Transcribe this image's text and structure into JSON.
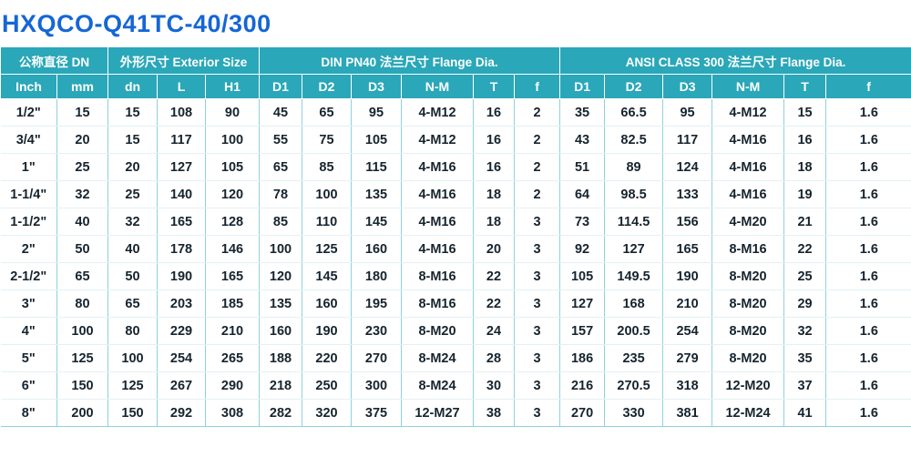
{
  "page": {
    "title": "HXQCO-Q41TC-40/300"
  },
  "colors": {
    "header_bg": "#2aa7b8",
    "title_color": "#1566d6",
    "grid_teal": "#8ed2dd",
    "row_line": "#e2f1f4",
    "text_dark": "#16242f"
  },
  "chart_data": {
    "type": "table",
    "title": "HXQCO-Q41TC-40/300",
    "column_groups": [
      {
        "label": "公称直径 DN",
        "span": 2
      },
      {
        "label": "外形尺寸 Exterior Size",
        "span": 3
      },
      {
        "label": "DIN PN40 法兰尺寸 Flange Dia.",
        "span": 6
      },
      {
        "label": "ANSI CLASS 300 法兰尺寸 Flange Dia.",
        "span": 6
      }
    ],
    "columns": [
      "Inch",
      "mm",
      "dn",
      "L",
      "H1",
      "D1",
      "D2",
      "D3",
      "N-M",
      "T",
      "f",
      "D1",
      "D2",
      "D3",
      "N-M",
      "T",
      "f"
    ],
    "rows": [
      [
        "1/2\"",
        15,
        15,
        108,
        90,
        45,
        65,
        95,
        "4-M12",
        16,
        2,
        35,
        66.5,
        95,
        "4-M12",
        15,
        1.6
      ],
      [
        "3/4\"",
        20,
        15,
        117,
        100,
        55,
        75,
        105,
        "4-M12",
        16,
        2,
        43,
        82.5,
        117,
        "4-M16",
        16,
        1.6
      ],
      [
        "1\"",
        25,
        20,
        127,
        105,
        65,
        85,
        115,
        "4-M16",
        16,
        2,
        51,
        89,
        124,
        "4-M16",
        18,
        1.6
      ],
      [
        "1-1/4\"",
        32,
        25,
        140,
        120,
        78,
        100,
        135,
        "4-M16",
        18,
        2,
        64,
        98.5,
        133,
        "4-M16",
        19,
        1.6
      ],
      [
        "1-1/2\"",
        40,
        32,
        165,
        128,
        85,
        110,
        145,
        "4-M16",
        18,
        3,
        73,
        114.5,
        156,
        "4-M20",
        21,
        1.6
      ],
      [
        "2\"",
        50,
        40,
        178,
        146,
        100,
        125,
        160,
        "4-M16",
        20,
        3,
        92,
        127,
        165,
        "8-M16",
        22,
        1.6
      ],
      [
        "2-1/2\"",
        65,
        50,
        190,
        165,
        120,
        145,
        180,
        "8-M16",
        22,
        3,
        105,
        149.5,
        190,
        "8-M20",
        25,
        1.6
      ],
      [
        "3\"",
        80,
        65,
        203,
        185,
        135,
        160,
        195,
        "8-M16",
        22,
        3,
        127,
        168,
        210,
        "8-M20",
        29,
        1.6
      ],
      [
        "4\"",
        100,
        80,
        229,
        210,
        160,
        190,
        230,
        "8-M20",
        24,
        3,
        157,
        200.5,
        254,
        "8-M20",
        32,
        1.6
      ],
      [
        "5\"",
        125,
        100,
        254,
        265,
        188,
        220,
        270,
        "8-M24",
        28,
        3,
        186,
        235,
        279,
        "8-M20",
        35,
        1.6
      ],
      [
        "6\"",
        150,
        125,
        267,
        290,
        218,
        250,
        300,
        "8-M24",
        30,
        3,
        216,
        270.5,
        318,
        "12-M20",
        37,
        1.6
      ],
      [
        "8\"",
        200,
        150,
        292,
        308,
        282,
        320,
        375,
        "12-M27",
        38,
        3,
        270,
        330,
        381,
        "12-M24",
        41,
        1.6
      ]
    ]
  }
}
